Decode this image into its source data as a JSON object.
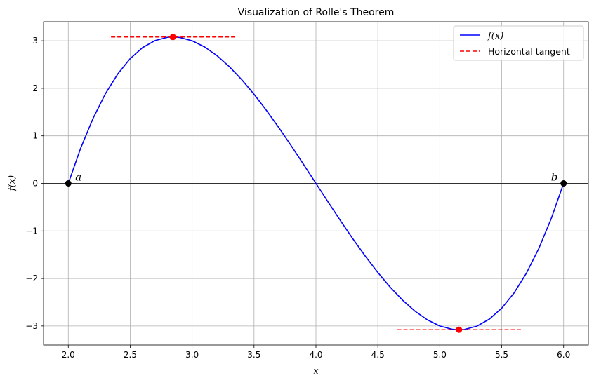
{
  "chart_data": {
    "type": "line",
    "title": "Visualization of Rolle's Theorem",
    "xlabel": "x",
    "ylabel": "f(x)",
    "xlim": [
      1.8,
      6.2
    ],
    "ylim": [
      -3.4,
      3.4
    ],
    "x_ticks": [
      2.0,
      2.5,
      3.0,
      3.5,
      4.0,
      4.5,
      5.0,
      5.5,
      6.0
    ],
    "x_tick_labels": [
      "2.0",
      "2.5",
      "3.0",
      "3.5",
      "4.0",
      "4.5",
      "5.0",
      "5.5",
      "6.0"
    ],
    "y_ticks": [
      -3,
      -2,
      -1,
      0,
      1,
      2,
      3
    ],
    "y_tick_labels": [
      "−3",
      "−2",
      "−1",
      "0",
      "1",
      "2",
      "3"
    ],
    "grid": true,
    "zero_line": true,
    "legend_position": "top-right",
    "series": [
      {
        "name": "f(x)",
        "color": "#0000ff",
        "style": "solid",
        "x": [
          2.0,
          2.1,
          2.2,
          2.3,
          2.4,
          2.5,
          2.6,
          2.7,
          2.8,
          2.845,
          2.9,
          3.0,
          3.1,
          3.2,
          3.3,
          3.4,
          3.5,
          3.6,
          3.7,
          3.8,
          3.9,
          4.0,
          4.1,
          4.2,
          4.3,
          4.4,
          4.5,
          4.6,
          4.7,
          4.8,
          4.9,
          5.0,
          5.1,
          5.155,
          5.2,
          5.3,
          5.4,
          5.5,
          5.6,
          5.7,
          5.8,
          5.9,
          6.0
        ],
        "y": [
          0.0,
          0.741,
          1.368,
          1.887,
          2.304,
          2.625,
          2.856,
          3.003,
          3.072,
          3.079,
          3.069,
          3.0,
          2.871,
          2.688,
          2.457,
          2.184,
          1.875,
          1.536,
          1.173,
          0.792,
          0.399,
          0.0,
          -0.399,
          -0.792,
          -1.173,
          -1.536,
          -1.875,
          -2.184,
          -2.457,
          -2.688,
          -2.871,
          -3.0,
          -3.069,
          -3.079,
          -3.072,
          -3.003,
          -2.856,
          -2.625,
          -2.304,
          -1.887,
          -1.368,
          -0.741,
          0.0
        ]
      },
      {
        "name": "Horizontal tangent",
        "color": "#ff0000",
        "style": "dashed",
        "segments": [
          {
            "x": [
              2.345,
              3.345
            ],
            "y": [
              3.079,
              3.079
            ]
          },
          {
            "x": [
              4.655,
              5.655
            ],
            "y": [
              -3.079,
              -3.079
            ]
          }
        ]
      }
    ],
    "endpoints": [
      {
        "label": "a",
        "x": 2.0,
        "y": 0.0
      },
      {
        "label": "b",
        "x": 6.0,
        "y": 0.0
      }
    ],
    "critical_points": [
      {
        "x": 2.845,
        "y": 3.079
      },
      {
        "x": 5.155,
        "y": -3.079
      }
    ]
  }
}
